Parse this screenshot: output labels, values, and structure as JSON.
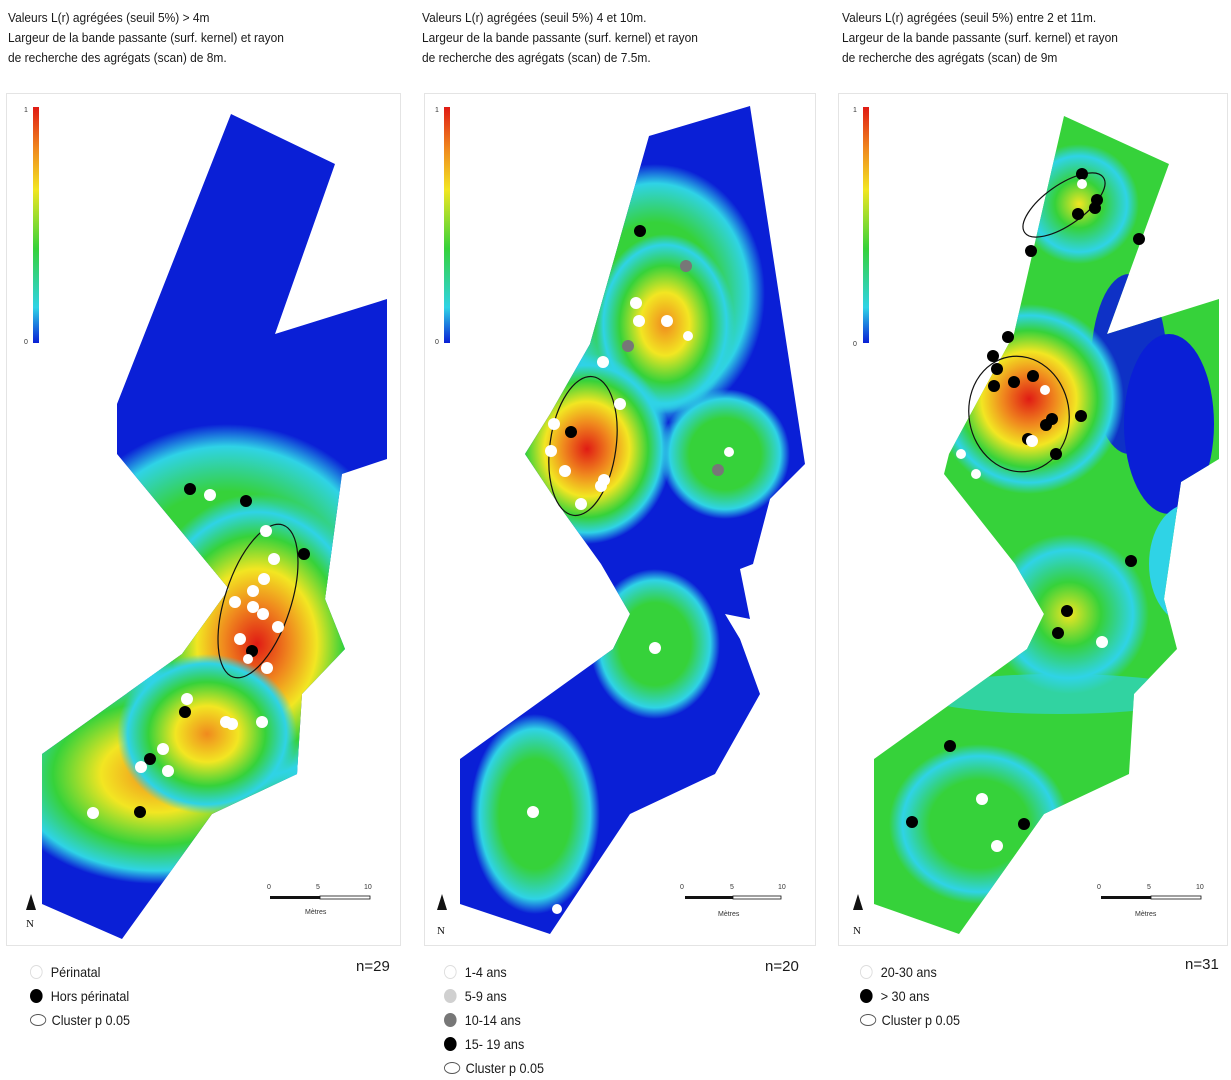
{
  "panels": [
    {
      "title_lines": [
        "Valeurs L(r) agrégées (seuil 5%)  > 4m",
        "Largeur de la bande passante (surf. kernel) et rayon",
        "de recherche des agrégats (scan) de 8m."
      ],
      "n": "n=29",
      "legend": [
        {
          "label": "Périnatal",
          "fill": "#ffffff",
          "kind": "dot"
        },
        {
          "label": "Hors périnatal",
          "fill": "#000000",
          "kind": "dot"
        },
        {
          "label": "Cluster p 0.05",
          "fill": "#ffffff",
          "kind": "ellipse"
        }
      ],
      "ramp": {
        "max": "1",
        "min": "0"
      },
      "scale": {
        "ticks": [
          "0",
          "5",
          "10"
        ],
        "unit": "Mètres"
      },
      "north": "N"
    },
    {
      "title_lines": [
        "Valeurs L(r) agrégées (seuil 5%) 4 et 10m.",
        "Largeur de la bande passante (surf. kernel) et rayon",
        "de recherche des agrégats (scan)  de 7.5m."
      ],
      "n": "n=20",
      "legend": [
        {
          "label": "1-4 ans",
          "fill": "#ffffff",
          "kind": "dot"
        },
        {
          "label": "5-9 ans",
          "fill": "#d0d0d0",
          "kind": "dot"
        },
        {
          "label": "10-14 ans",
          "fill": "#777777",
          "kind": "dot"
        },
        {
          "label": "15- 19 ans",
          "fill": "#000000",
          "kind": "dot"
        },
        {
          "label": "Cluster p 0.05",
          "fill": "#ffffff",
          "kind": "ellipse"
        }
      ],
      "ramp": {
        "max": "1",
        "min": "0"
      },
      "scale": {
        "ticks": [
          "0",
          "5",
          "10"
        ],
        "unit": "Mètres"
      },
      "north": "N"
    },
    {
      "title_lines": [
        "Valeurs L(r) agrégées (seuil 5%) entre 2 et 11m.",
        "Largeur de la bande passante (surf. kernel) et rayon",
        "de recherche des agrégats (scan)  de 9m"
      ],
      "n": "n=31",
      "legend": [
        {
          "label": "20-30 ans",
          "fill": "#ffffff",
          "kind": "dot"
        },
        {
          "label": "> 30 ans",
          "fill": "#000000",
          "kind": "dot"
        },
        {
          "label": "Cluster p 0.05",
          "fill": "#ffffff",
          "kind": "ellipse"
        }
      ],
      "ramp": {
        "max": "1",
        "min": "0"
      },
      "scale": {
        "ticks": [
          "0",
          "5",
          "10"
        ],
        "unit": "Mètres"
      },
      "north": "N"
    }
  ],
  "colors": {
    "low": "#0a1fd6",
    "cyan": "#2fd3e6",
    "green": "#36d23a",
    "yellow": "#f2e622",
    "orange": "#f08a1e",
    "high": "#e01b14"
  }
}
